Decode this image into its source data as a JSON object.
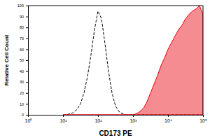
{
  "chart_data": {
    "type": "line",
    "x_label": "CD173 PE",
    "y_label": "Relative Cell Count",
    "log": "x",
    "grid": false,
    "xlim": [
      1,
      100000
    ],
    "xticks": [
      {
        "value": 1,
        "label": "10⁰"
      },
      {
        "value": 10,
        "label": "10¹"
      },
      {
        "value": 100,
        "label": "10²"
      },
      {
        "value": 1000,
        "label": "10³"
      },
      {
        "value": 10000,
        "label": "10⁴"
      },
      {
        "value": 100000,
        "label": "10⁵"
      }
    ],
    "ylim": [
      0,
      100
    ],
    "yticks": [
      0,
      10,
      20,
      30,
      40,
      50,
      60,
      70,
      80,
      90,
      100
    ],
    "x": [
      10,
      12.6,
      15.8,
      20,
      25.1,
      31.6,
      39.8,
      50.1,
      63.1,
      79.4,
      100,
      125.9,
      158.5,
      199.5,
      251.2,
      316.2,
      398.1,
      501.2,
      631,
      794.3,
      1000,
      1258.9,
      1584.9,
      1995.3,
      2511.9,
      3162.3,
      3981.1,
      5011.9,
      6309.6,
      7943.3,
      10000,
      12589,
      15849,
      19953,
      25119,
      31623,
      39811,
      50119,
      63096,
      79433,
      100000
    ],
    "series": [
      {
        "type": "line",
        "color": "#000000",
        "line_style": "dashed",
        "values": [
          0,
          0,
          1,
          2,
          5,
          10,
          20,
          35,
          55,
          78,
          95,
          88,
          65,
          40,
          20,
          8,
          3,
          1,
          0,
          0,
          0,
          0,
          0,
          0,
          0,
          0,
          0,
          0,
          0,
          0,
          0,
          0,
          0,
          0,
          0,
          0,
          0,
          0,
          0,
          0,
          0
        ]
      },
      {
        "type": "area",
        "color": "#e8000b",
        "line_style": "solid",
        "values": [
          0,
          0,
          0,
          0,
          0,
          0,
          0,
          0,
          0,
          0,
          0,
          0,
          0,
          0,
          0,
          0,
          0,
          0,
          0,
          0,
          0,
          1,
          3,
          6,
          12,
          20,
          28,
          36,
          45,
          52,
          60,
          66,
          72,
          78,
          82,
          88,
          92,
          95,
          97,
          100,
          92
        ]
      }
    ]
  }
}
